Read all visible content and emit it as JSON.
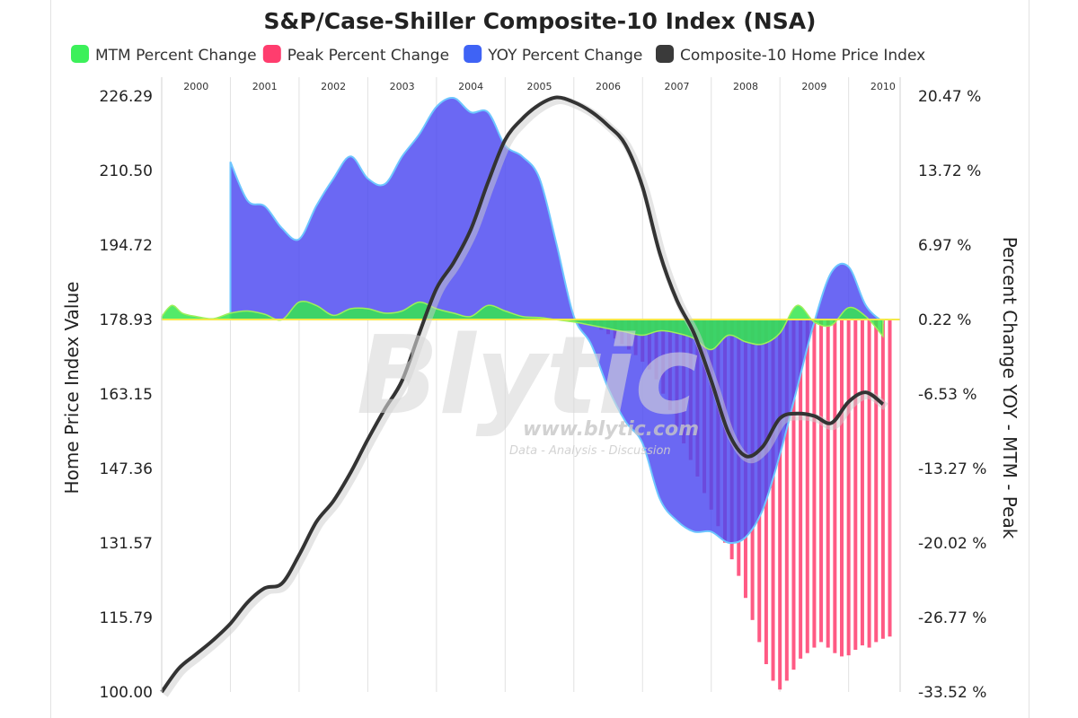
{
  "chart_data": {
    "type": "area",
    "title": "S&P/Case-Shiller Composite-10 Index (NSA)",
    "legend": [
      {
        "name": "MTM Percent Change",
        "color": "#3cf05a"
      },
      {
        "name": "Peak Percent Change",
        "color": "#ff3d6e"
      },
      {
        "name": "YOY Percent Change",
        "color": "#3f63f5"
      },
      {
        "name": "Composite-10 Home Price Index",
        "color": "#3a3a3a"
      }
    ],
    "years": [
      "2000",
      "2001",
      "2002",
      "2003",
      "2004",
      "2005",
      "2006",
      "2007",
      "2008",
      "2009",
      "2010"
    ],
    "y_left": {
      "label": "Home Price Index Value",
      "ticks": [
        "226.29",
        "210.50",
        "194.72",
        "178.93",
        "163.15",
        "147.36",
        "131.57",
        "115.79",
        "100.00"
      ],
      "range": [
        100.0,
        226.29
      ]
    },
    "y_right": {
      "label": "Percent Change YOY - MTM - Peak",
      "ticks": [
        "20.47 %",
        "13.72 %",
        "6.97 %",
        "0.22 %",
        "-6.53 %",
        "-13.27 %",
        "-20.02 %",
        "-26.77 %",
        "-33.52 %"
      ],
      "range": [
        -33.52,
        20.47
      ]
    },
    "watermark": {
      "brand": "Blytic",
      "url": "www.blytic.com",
      "tagline": "Data - Analysis - Discussion"
    },
    "index_series": {
      "name": "Composite-10 Home Price Index",
      "x": [
        2000.0,
        2000.25,
        2000.5,
        2000.75,
        2001.0,
        2001.25,
        2001.5,
        2001.75,
        2002.0,
        2002.25,
        2002.5,
        2002.75,
        2003.0,
        2003.25,
        2003.5,
        2003.75,
        2004.0,
        2004.25,
        2004.5,
        2004.75,
        2005.0,
        2005.25,
        2005.5,
        2005.75,
        2006.0,
        2006.25,
        2006.5,
        2006.75,
        2007.0,
        2007.25,
        2007.5,
        2007.75,
        2008.0,
        2008.25,
        2008.5,
        2008.75,
        2009.0,
        2009.25,
        2009.5,
        2009.75,
        2010.0,
        2010.25,
        2010.5
      ],
      "values": [
        100.0,
        105.0,
        108.0,
        111.0,
        114.5,
        119.0,
        122.0,
        123.0,
        129.0,
        136.0,
        140.5,
        146.5,
        153.5,
        160.0,
        166.0,
        176.0,
        185.5,
        191.0,
        198.0,
        208.0,
        217.0,
        221.5,
        224.5,
        226.0,
        225.0,
        223.0,
        220.0,
        216.0,
        207.0,
        193.0,
        183.0,
        176.0,
        166.0,
        155.0,
        150.0,
        152.0,
        158.0,
        159.0,
        158.5,
        157.0,
        161.5,
        163.5,
        161.0
      ]
    },
    "yoy_series": {
      "name": "YOY Percent Change",
      "x": [
        2001.0,
        2001.25,
        2001.5,
        2001.75,
        2002.0,
        2002.25,
        2002.5,
        2002.75,
        2003.0,
        2003.25,
        2003.5,
        2003.75,
        2004.0,
        2004.25,
        2004.5,
        2004.75,
        2005.0,
        2005.25,
        2005.5,
        2005.75,
        2006.0,
        2006.25,
        2006.5,
        2006.75,
        2007.0,
        2007.25,
        2007.5,
        2007.75,
        2008.0,
        2008.25,
        2008.5,
        2008.75,
        2009.0,
        2009.25,
        2009.5,
        2009.75,
        2010.0,
        2010.25,
        2010.5
      ],
      "values": [
        14.5,
        11.0,
        10.5,
        8.5,
        7.5,
        10.5,
        13.0,
        15.0,
        13.0,
        12.5,
        15.0,
        17.0,
        19.5,
        20.3,
        19.0,
        19.0,
        16.0,
        15.0,
        13.0,
        7.0,
        0.5,
        -2.0,
        -6.0,
        -9.0,
        -11.0,
        -16.0,
        -18.0,
        -19.0,
        -19.0,
        -20.0,
        -19.5,
        -17.0,
        -12.0,
        -6.0,
        0.0,
        4.5,
        5.0,
        1.5,
        0.0
      ]
    },
    "mtm_series": {
      "name": "MTM Percent Change",
      "x": [
        2000.0,
        2000.15,
        2000.3,
        2000.5,
        2000.75,
        2001.0,
        2001.25,
        2001.5,
        2001.75,
        2002.0,
        2002.25,
        2002.5,
        2002.75,
        2003.0,
        2003.25,
        2003.5,
        2003.75,
        2004.0,
        2004.25,
        2004.5,
        2004.75,
        2005.0,
        2005.25,
        2005.5,
        2005.75,
        2006.0,
        2006.25,
        2006.5,
        2006.75,
        2007.0,
        2007.25,
        2007.5,
        2007.75,
        2008.0,
        2008.25,
        2008.5,
        2008.75,
        2009.0,
        2009.25,
        2009.5,
        2009.75,
        2010.0,
        2010.25,
        2010.5
      ],
      "values": [
        0.5,
        1.5,
        0.8,
        0.5,
        0.3,
        0.8,
        1.0,
        0.7,
        0.2,
        1.8,
        1.5,
        0.6,
        1.2,
        1.2,
        0.8,
        1.0,
        1.8,
        1.2,
        0.8,
        0.5,
        1.5,
        1.0,
        0.5,
        0.4,
        0.2,
        0.0,
        -0.3,
        -0.6,
        -0.9,
        -1.2,
        -0.8,
        -1.0,
        -1.5,
        -2.5,
        -1.2,
        -1.8,
        -2.0,
        -1.0,
        1.5,
        0.0,
        -0.3,
        1.3,
        0.5,
        -1.3
      ]
    },
    "peak_series": {
      "name": "Peak Percent Change",
      "x": [
        2006.2,
        2006.3,
        2006.4,
        2006.5,
        2006.6,
        2006.7,
        2006.8,
        2006.9,
        2007.0,
        2007.1,
        2007.2,
        2007.3,
        2007.4,
        2007.5,
        2007.6,
        2007.7,
        2007.8,
        2007.9,
        2008.0,
        2008.1,
        2008.2,
        2008.3,
        2008.4,
        2008.5,
        2008.6,
        2008.7,
        2008.8,
        2008.9,
        2009.0,
        2009.1,
        2009.2,
        2009.3,
        2009.4,
        2009.5,
        2009.6,
        2009.7,
        2009.8,
        2009.9,
        2010.0,
        2010.1,
        2010.2,
        2010.3,
        2010.4,
        2010.5,
        2010.6
      ],
      "values": [
        -0.2,
        -0.4,
        -0.7,
        -1.1,
        -1.5,
        -2.0,
        -2.5,
        -3.0,
        -3.6,
        -4.3,
        -5.2,
        -6.5,
        -8.0,
        -9.5,
        -11.0,
        -12.5,
        -14.0,
        -15.5,
        -17.0,
        -18.5,
        -20.0,
        -21.5,
        -23.0,
        -25.0,
        -27.0,
        -29.0,
        -31.0,
        -32.5,
        -33.3,
        -32.5,
        -31.5,
        -30.5,
        -30.0,
        -29.5,
        -29.0,
        -29.5,
        -30.0,
        -30.3,
        -30.2,
        -29.7,
        -29.3,
        -29.5,
        -29.0,
        -28.7,
        -28.5
      ]
    }
  }
}
